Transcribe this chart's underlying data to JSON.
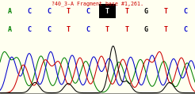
{
  "title": "?40_3-A Fragment base #1,261.",
  "title_color": "#cc0000",
  "bg_color": "#fffff0",
  "bases_top": [
    "A",
    "C",
    "C",
    "T",
    "C",
    "T",
    "T",
    "G",
    "T",
    "C"
  ],
  "bases_bottom": [
    "A",
    "C",
    "C",
    "T",
    "C",
    "T",
    "T",
    "G",
    "T",
    "C"
  ],
  "top_colors": [
    "#008000",
    "#0000cc",
    "#0000cc",
    "#cc0000",
    "#0000cc",
    "#ffffff",
    "#cc0000",
    "#000000",
    "#cc0000",
    "#0000cc"
  ],
  "bottom_colors": [
    "#008000",
    "#0000cc",
    "#0000cc",
    "#cc0000",
    "#0000cc",
    "#cc0000",
    "#cc0000",
    "#000000",
    "#cc0000",
    "#0000cc"
  ],
  "highlight_index": 5,
  "highlight_bg": "#000000",
  "highlight_text_color": "#ffffff",
  "chromatogram_bg": "#ffffff",
  "trace_colors": {
    "green": "#008000",
    "blue": "#0000cc",
    "red": "#cc0000",
    "black": "#000000"
  }
}
